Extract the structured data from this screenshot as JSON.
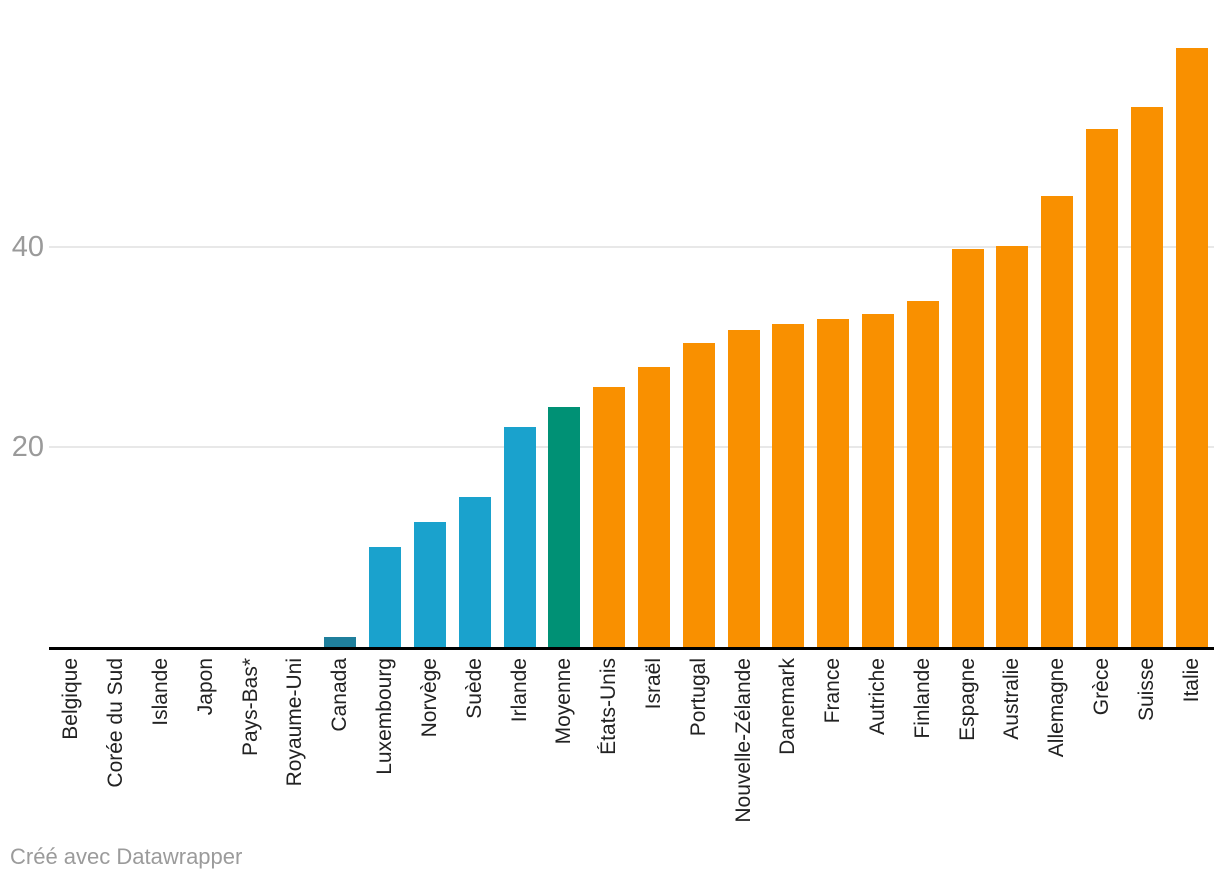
{
  "chart_data": {
    "type": "bar",
    "categories": [
      "Belgique",
      "Corée du Sud",
      "Islande",
      "Japon",
      "Pays-Bas*",
      "Royaume-Uni",
      "Canada",
      "Luxembourg",
      "Norvège",
      "Suède",
      "Irlande",
      "Moyenne",
      "États-Unis",
      "Israël",
      "Portugal",
      "Nouvelle-Zélande",
      "Danemark",
      "France",
      "Autriche",
      "Finlande",
      "Espagne",
      "Australie",
      "Allemagne",
      "Grèce",
      "Suisse",
      "Italie"
    ],
    "values": [
      0,
      0,
      0,
      0,
      0,
      0,
      1,
      10,
      12.5,
      15,
      22,
      24,
      26,
      28,
      30.4,
      31.7,
      32.3,
      32.8,
      33.3,
      34.6,
      39.8,
      40.1,
      45.1,
      51.8,
      54,
      59.9
    ],
    "bar_colors": [
      "#1aa2cd",
      "#1aa2cd",
      "#1aa2cd",
      "#1aa2cd",
      "#1aa2cd",
      "#1aa2cd",
      "#1f7f9c",
      "#1aa2cd",
      "#1aa2cd",
      "#1aa2cd",
      "#1aa2cd",
      "#009175",
      "#f99000",
      "#f99000",
      "#f99000",
      "#f99000",
      "#f99000",
      "#f99000",
      "#f99000",
      "#f99000",
      "#f99000",
      "#f99000",
      "#f99000",
      "#f99000",
      "#f99000",
      "#f99000"
    ],
    "palette": {
      "blue": "#1aa2cd",
      "dark_blue": "#1f7f9c",
      "green": "#009175",
      "orange": "#f99000"
    },
    "title": "",
    "xlabel": "",
    "ylabel": "",
    "ylim": [
      0,
      60
    ],
    "y_ticks": [
      20,
      40
    ],
    "y_tick_labels": [
      "20",
      "40"
    ],
    "grid": "horizontal",
    "legend": "none"
  },
  "colors": {
    "background": "#ffffff",
    "gridline": "#e8e8e8",
    "axis_line": "#000000",
    "tick_text": "#9a9a9a",
    "category_text": "#222222",
    "credit_text": "#9b9b9b"
  },
  "footer": {
    "credit": "Créé avec Datawrapper"
  }
}
